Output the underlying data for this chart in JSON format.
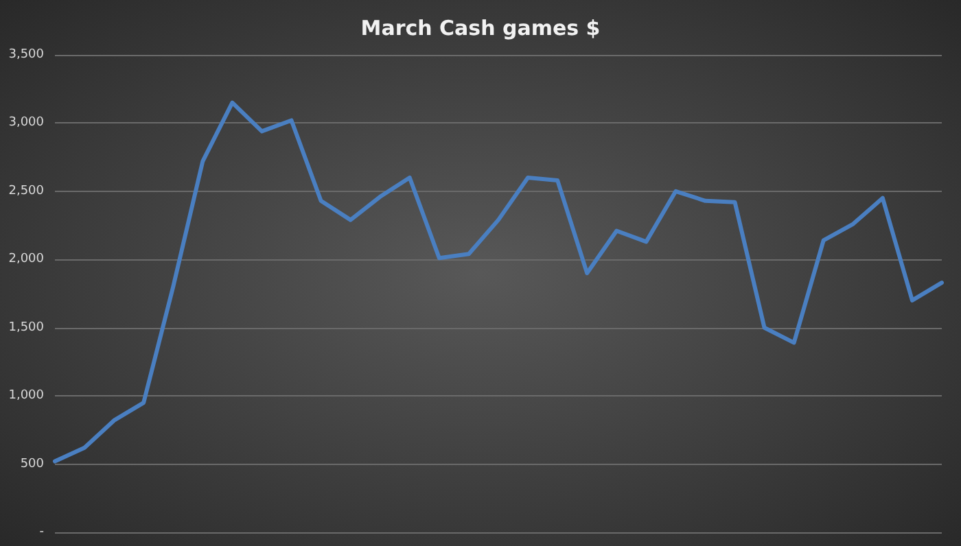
{
  "chart_data": {
    "type": "line",
    "title": "March Cash games $",
    "categories": [
      null,
      null,
      null,
      null,
      null,
      null,
      null,
      null,
      null,
      null,
      null,
      null,
      null,
      null,
      null,
      null,
      null,
      null,
      null,
      null,
      null,
      null,
      null,
      null,
      null,
      null,
      null,
      null,
      null,
      null,
      null
    ],
    "series": [
      {
        "color": "#4a7fc1",
        "values": [
          520,
          620,
          820,
          950,
          1800,
          2720,
          3150,
          2940,
          3020,
          2430,
          2290,
          2460,
          2600,
          2010,
          2040,
          2290,
          2600,
          2580,
          1900,
          2210,
          2130,
          2500,
          2430,
          2420,
          1500,
          1390,
          2140,
          2260,
          2450,
          1700,
          1830
        ]
      }
    ],
    "ylim": [
      0,
      3500
    ],
    "yticks": [
      {
        "value": 0,
        "label": "-"
      },
      {
        "value": 500,
        "label": "500"
      },
      {
        "value": 1000,
        "label": "1,000"
      },
      {
        "value": 1500,
        "label": "1,500"
      },
      {
        "value": 2000,
        "label": "2,000"
      },
      {
        "value": 2500,
        "label": "2,500"
      },
      {
        "value": 3000,
        "label": "3,000"
      },
      {
        "value": 3500,
        "label": "3,500"
      }
    ],
    "grid": "y",
    "marker": "none",
    "line_style": "solid"
  }
}
